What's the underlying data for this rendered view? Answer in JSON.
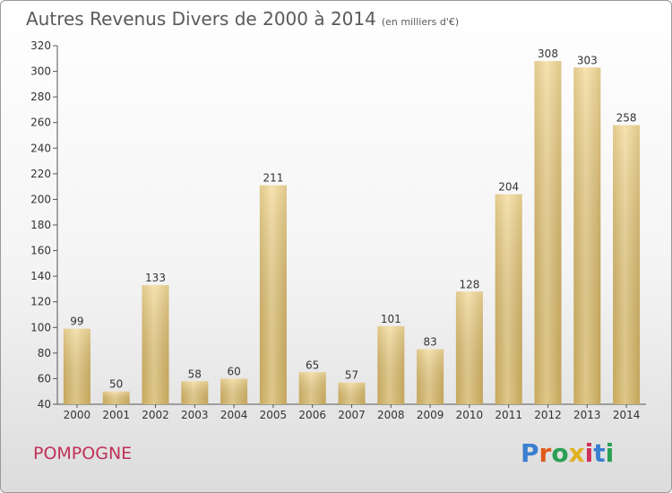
{
  "title": "Autres Revenus Divers de 2000 à 2014",
  "subtitle": "(en milliers d'€)",
  "town": "POMPOGNE",
  "logo": {
    "text": "Proxiti",
    "colors": [
      "#3a7fd0",
      "#e05a1a",
      "#2aa055",
      "#e0b020",
      "#d0305a",
      "#3a7fd0",
      "#2aa055"
    ]
  },
  "chart_data": {
    "type": "bar",
    "categories": [
      "2000",
      "2001",
      "2002",
      "2003",
      "2004",
      "2005",
      "2006",
      "2007",
      "2008",
      "2009",
      "2010",
      "2011",
      "2012",
      "2013",
      "2014"
    ],
    "values": [
      99,
      50,
      133,
      58,
      60,
      211,
      65,
      57,
      101,
      83,
      128,
      204,
      308,
      303,
      258
    ],
    "ylim": [
      40,
      320
    ],
    "yticks": [
      40,
      60,
      80,
      100,
      120,
      140,
      160,
      180,
      200,
      220,
      240,
      260,
      280,
      300,
      320
    ],
    "grid": false,
    "bar_color": "#e6c77e"
  }
}
